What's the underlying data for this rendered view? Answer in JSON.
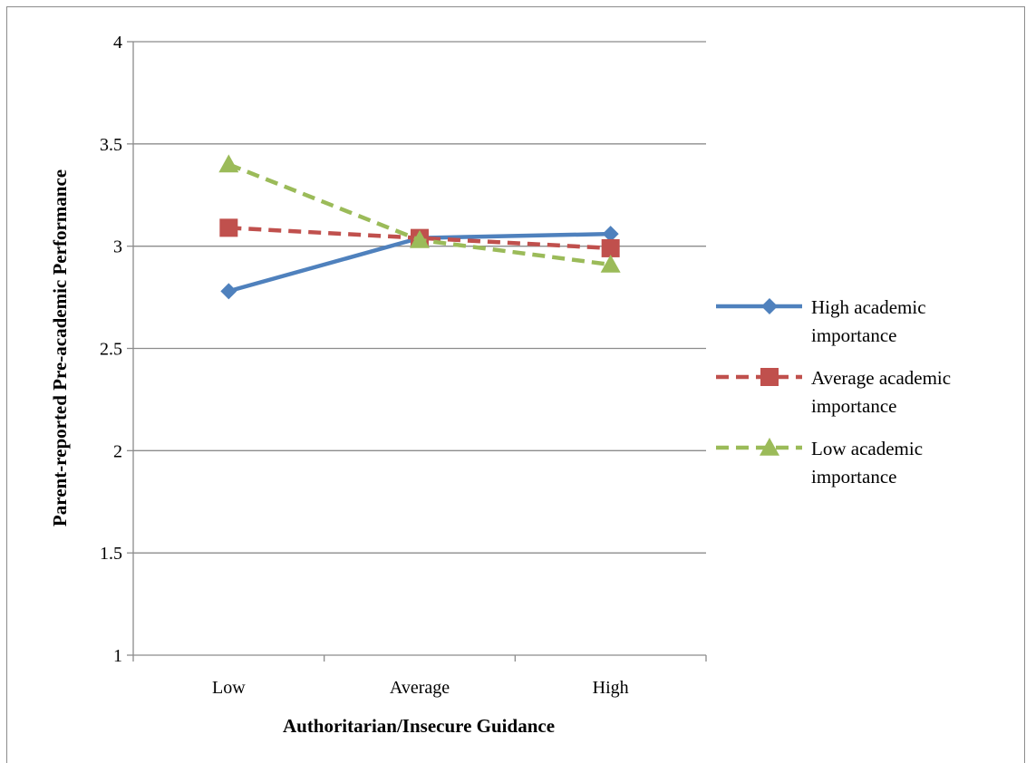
{
  "chart_data": {
    "type": "line",
    "title": "",
    "xlabel": "Authoritarian/Insecure Guidance",
    "ylabel": "Parent-reported Pre-academic Performance",
    "categories": [
      "Low",
      "Average",
      "High"
    ],
    "ylim": [
      1,
      4
    ],
    "yticks": [
      "1",
      "1.5",
      "2",
      "2.5",
      "3",
      "3.5",
      "4"
    ],
    "grid": true,
    "legend_position": "right",
    "series": [
      {
        "name_lines": [
          "High academic",
          "importance"
        ],
        "name": "High academic importance",
        "values": [
          2.78,
          3.04,
          3.06
        ],
        "color": "#4f81bd",
        "marker": "diamond",
        "dash": "solid"
      },
      {
        "name_lines": [
          "Average academic",
          "importance"
        ],
        "name": "Average academic importance",
        "values": [
          3.09,
          3.04,
          2.99
        ],
        "color": "#c0504d",
        "marker": "square",
        "dash": "dashed"
      },
      {
        "name_lines": [
          "Low academic",
          "importance"
        ],
        "name": "Low academic importance",
        "values": [
          3.4,
          3.03,
          2.91
        ],
        "color": "#9bbb59",
        "marker": "triangle",
        "dash": "dashed"
      }
    ]
  }
}
